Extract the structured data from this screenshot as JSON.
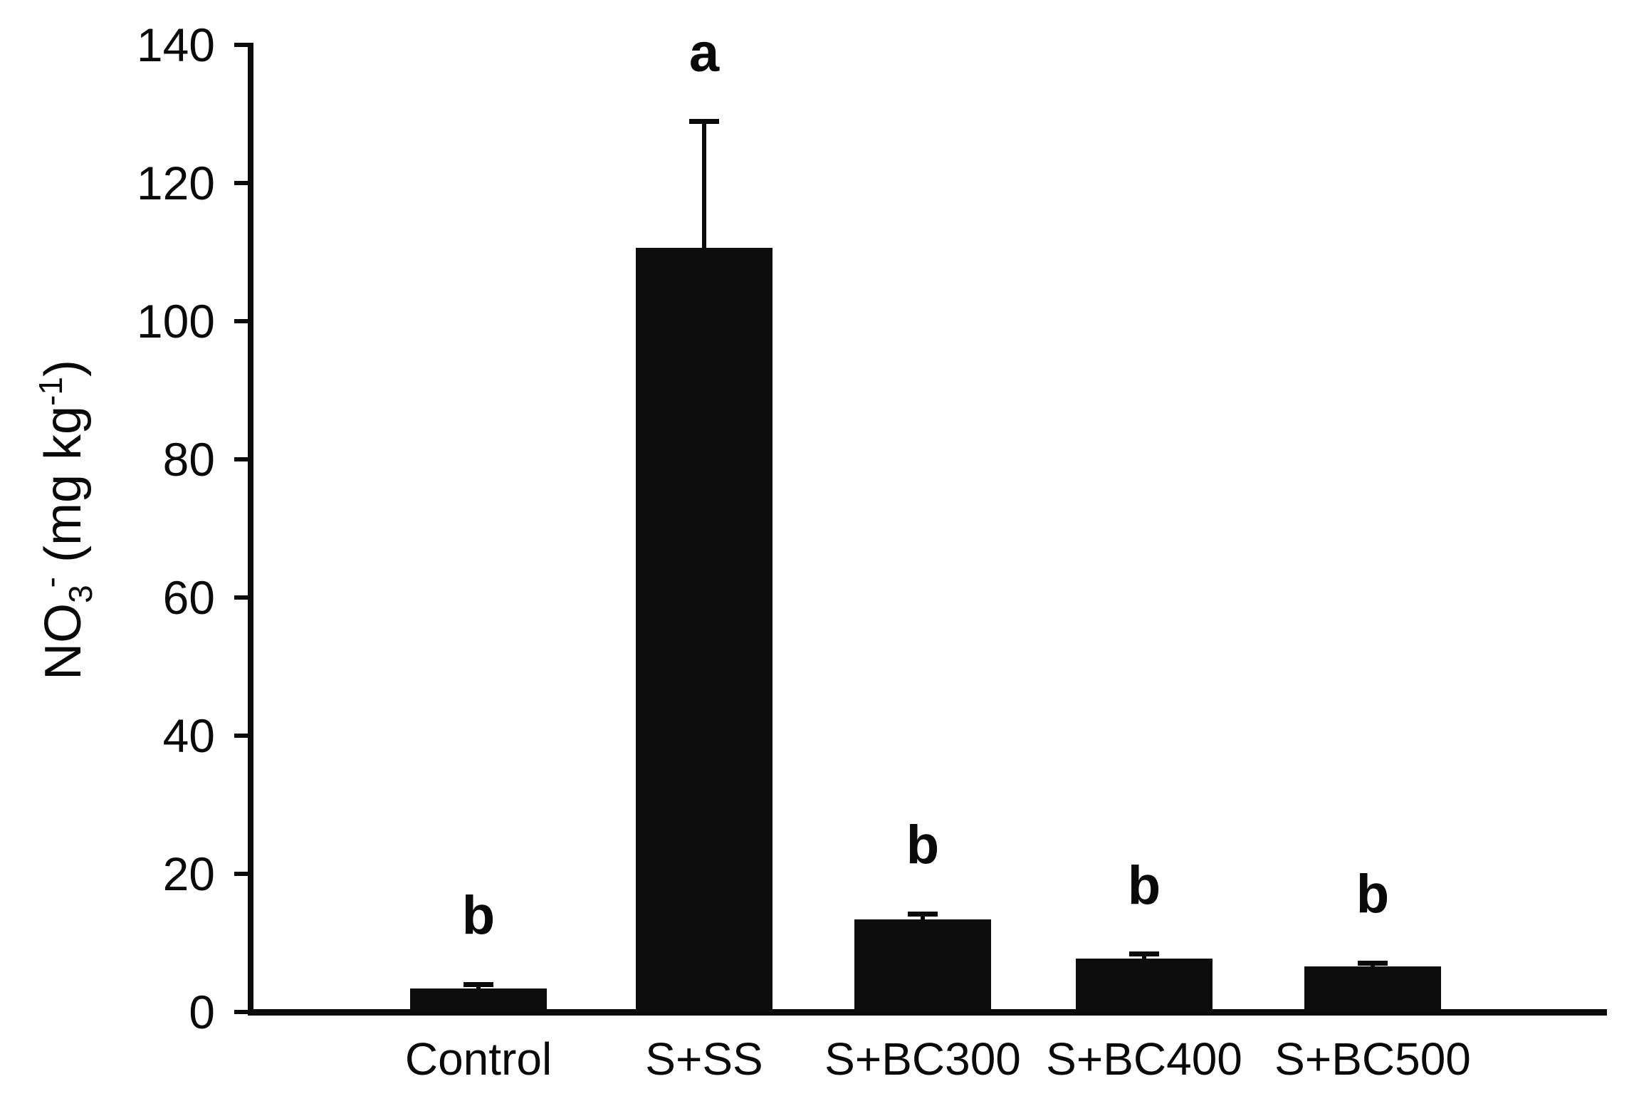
{
  "chart_data": {
    "type": "bar",
    "title": "",
    "xlabel": "",
    "ylabel": "NO3- (mg kg-1)",
    "ylabel_parts": [
      {
        "text": "NO",
        "script": "normal"
      },
      {
        "text": "3",
        "script": "sub"
      },
      {
        "text": "-",
        "script": "sup"
      },
      {
        "text": " (mg kg",
        "script": "normal"
      },
      {
        "text": "-1",
        "script": "sup"
      },
      {
        "text": ")",
        "script": "normal"
      }
    ],
    "categories": [
      "Control",
      "S+SS",
      "S+BC300",
      "S+BC400",
      "S+BC500"
    ],
    "values": [
      3.4,
      110.6,
      13.4,
      7.7,
      6.6
    ],
    "errors_plus": [
      0.6,
      18.3,
      0.8,
      0.7,
      0.5
    ],
    "sig_letters": [
      "b",
      "a",
      "b",
      "b",
      "b"
    ],
    "ylim": [
      0,
      140
    ],
    "yticks": [
      0,
      20,
      40,
      60,
      80,
      100,
      120,
      140
    ],
    "grid": false,
    "legend_position": null,
    "bar_color": "#0d0d0d",
    "axis_color": "#0a0a0a",
    "background_color": "#ffffff"
  }
}
